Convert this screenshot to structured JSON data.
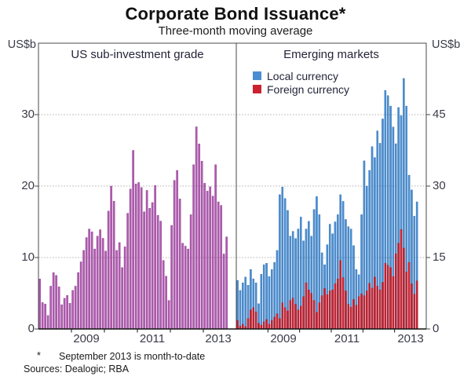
{
  "title": "Corporate Bond Issuance*",
  "subtitle": "Three-month moving average",
  "footnote": {
    "marker": "*",
    "text": "September 2013 is month-to-date"
  },
  "sources": "Sources: Dealogic; RBA",
  "colors": {
    "purple": "#b05ab0",
    "purple_edge": "#8a3e8a",
    "blue": "#4a8ed2",
    "blue_edge": "#2f6cab",
    "red": "#cb2130",
    "red_edge": "#9a141f",
    "grid": "#b3b3b3",
    "frame": "#4a4a4a",
    "axis": "#111111",
    "text": "#3b3b4a"
  },
  "axes": {
    "left_unit": "US$b",
    "right_unit": "US$b",
    "left_tick_labels": [
      "0",
      "10",
      "20",
      "30"
    ],
    "right_tick_labels": [
      "0",
      "15",
      "30",
      "45"
    ],
    "year_labels": [
      "2009",
      "2011",
      "2013"
    ]
  },
  "chart_data": [
    {
      "type": "bar",
      "panel_title": "US sub-investment grade",
      "unit": "US$b",
      "x_start": "2008-01",
      "x_end": "2013-09",
      "x_slots": 72,
      "year_tick_month_indices": [
        12,
        24,
        36,
        48,
        60
      ],
      "xticklabels": [
        "2009",
        "2011",
        "2013"
      ],
      "ylim": [
        0,
        40
      ],
      "yticks": [
        0,
        10,
        20,
        30
      ],
      "grid": true,
      "series": [
        {
          "name": "US sub-investment grade",
          "color_key": "purple",
          "values": [
            7.0,
            3.7,
            3.5,
            1.9,
            6.0,
            7.9,
            7.5,
            5.9,
            3.4,
            4.3,
            4.7,
            3.6,
            5.4,
            6.0,
            7.9,
            9.4,
            11.0,
            12.8,
            14.0,
            13.6,
            11.2,
            13.0,
            13.9,
            12.7,
            10.9,
            16.5,
            20.0,
            17.9,
            11.0,
            12.1,
            8.6,
            11.5,
            16.2,
            19.6,
            25.0,
            20.3,
            20.5,
            19.8,
            16.4,
            19.4,
            16.9,
            17.7,
            20.1,
            15.9,
            15.1,
            9.6,
            7.4,
            4.0,
            14.5,
            20.8,
            22.2,
            18.2,
            12.0,
            11.6,
            11.2,
            16.0,
            23.0,
            28.3,
            25.9,
            23.5,
            20.4,
            19.3,
            19.9,
            18.6,
            23.0,
            17.8,
            17.3,
            10.5,
            12.9
          ]
        }
      ]
    },
    {
      "type": "bar",
      "panel_title": "Emerging markets",
      "unit": "US$b",
      "x_start": "2008-01",
      "x_end": "2013-09",
      "x_slots": 72,
      "year_tick_month_indices": [
        12,
        24,
        36,
        48,
        60
      ],
      "xticklabels": [
        "2009",
        "2011",
        "2013"
      ],
      "ylim": [
        0,
        60
      ],
      "yticks": [
        0,
        15,
        30,
        45
      ],
      "grid": true,
      "bars_overlaid_from_zero": true,
      "series": [
        {
          "name": "Local currency",
          "color_key": "blue",
          "values": [
            10.2,
            8.1,
            9.7,
            10.9,
            9.2,
            12.5,
            10.5,
            9.7,
            5.3,
            11.5,
            13.5,
            13.8,
            11.0,
            12.5,
            14.0,
            16.5,
            28.2,
            29.8,
            27.4,
            24.9,
            19.5,
            20.5,
            19.0,
            21.0,
            23.5,
            18.5,
            21.0,
            22.6,
            19.5,
            25.1,
            27.8,
            24.0,
            16.0,
            13.5,
            17.7,
            22.0,
            20.0,
            22.5,
            24.0,
            28.2,
            26.8,
            23.0,
            21.5,
            21.0,
            17.5,
            12.5,
            11.4,
            24.0,
            35.3,
            30.0,
            33.3,
            38.3,
            36.0,
            41.6,
            39.0,
            44.1,
            50.1,
            49.0,
            46.8,
            42.4,
            38.9,
            46.5,
            44.8,
            52.6,
            46.8,
            32.3,
            29.2,
            23.7,
            26.7
          ]
        },
        {
          "name": "Foreign currency",
          "color_key": "red",
          "values": [
            1.8,
            0.6,
            1.0,
            0.5,
            2.2,
            4.0,
            4.5,
            3.6,
            1.2,
            0.8,
            1.5,
            2.0,
            1.0,
            1.8,
            2.5,
            3.2,
            2.2,
            5.5,
            4.5,
            3.8,
            6.0,
            6.5,
            5.2,
            4.0,
            4.8,
            6.8,
            9.7,
            8.2,
            7.5,
            6.0,
            3.5,
            5.5,
            7.0,
            8.5,
            7.2,
            8.0,
            8.2,
            9.5,
            10.5,
            14.4,
            10.8,
            8.0,
            5.2,
            4.6,
            6.2,
            5.0,
            6.8,
            7.4,
            7.0,
            8.0,
            9.6,
            8.6,
            10.9,
            9.0,
            8.2,
            9.8,
            13.8,
            13.4,
            12.9,
            11.0,
            15.8,
            18.0,
            20.9,
            17.0,
            12.0,
            14.0,
            9.5,
            7.3,
            10.1
          ]
        }
      ]
    }
  ]
}
